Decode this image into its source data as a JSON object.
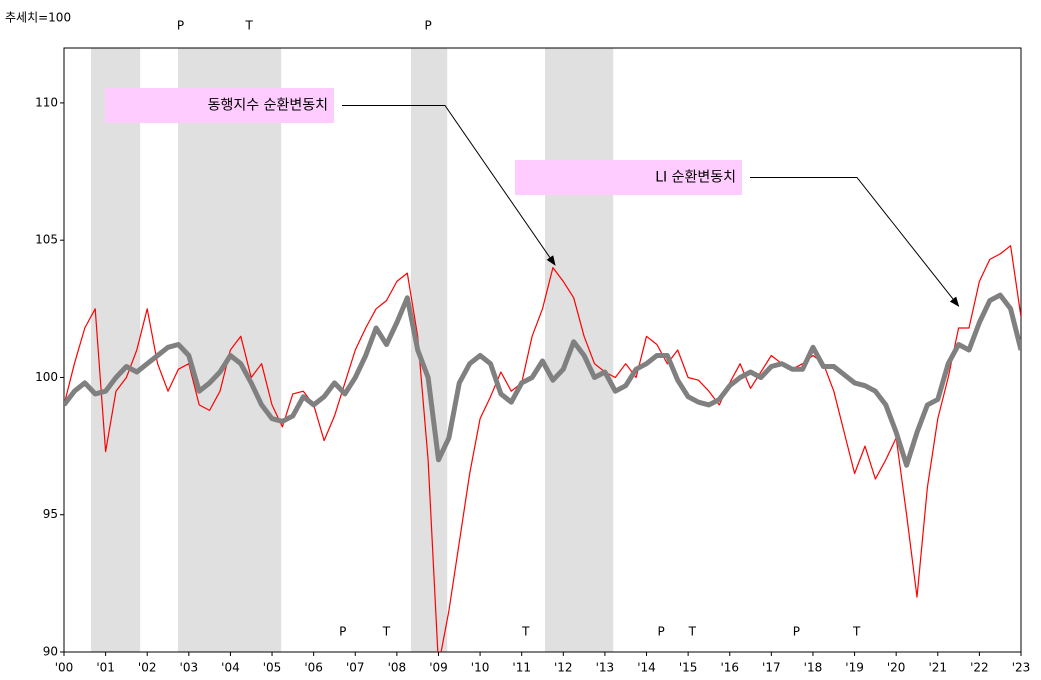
{
  "chart_data": {
    "type": "line",
    "y_unit_label": "추세치=100",
    "xlim": [
      2000,
      2023
    ],
    "ylim": [
      90,
      112
    ],
    "xticks": [
      {
        "value": 2000,
        "label": "'00"
      },
      {
        "value": 2001,
        "label": "'01"
      },
      {
        "value": 2002,
        "label": "'02"
      },
      {
        "value": 2003,
        "label": "'03"
      },
      {
        "value": 2004,
        "label": "'04"
      },
      {
        "value": 2005,
        "label": "'05"
      },
      {
        "value": 2006,
        "label": "'06"
      },
      {
        "value": 2007,
        "label": "'07"
      },
      {
        "value": 2008,
        "label": "'08"
      },
      {
        "value": 2009,
        "label": "'09"
      },
      {
        "value": 2010,
        "label": "'10"
      },
      {
        "value": 2011,
        "label": "'11"
      },
      {
        "value": 2012,
        "label": "'12"
      },
      {
        "value": 2013,
        "label": "'13"
      },
      {
        "value": 2014,
        "label": "'14"
      },
      {
        "value": 2015,
        "label": "'15"
      },
      {
        "value": 2016,
        "label": "'16"
      },
      {
        "value": 2017,
        "label": "'17"
      },
      {
        "value": 2018,
        "label": "'18"
      },
      {
        "value": 2019,
        "label": "'19"
      },
      {
        "value": 2020,
        "label": "'20"
      },
      {
        "value": 2021,
        "label": "'21"
      },
      {
        "value": 2022,
        "label": "'22"
      },
      {
        "value": 2023,
        "label": "'23"
      }
    ],
    "yticks": [
      90,
      95,
      100,
      105,
      110
    ],
    "x": [
      2000,
      2000.25,
      2000.5,
      2000.75,
      2001,
      2001.25,
      2001.5,
      2001.75,
      2002,
      2002.25,
      2002.5,
      2002.75,
      2003,
      2003.25,
      2003.5,
      2003.75,
      2004,
      2004.25,
      2004.5,
      2004.75,
      2005,
      2005.25,
      2005.5,
      2005.75,
      2006,
      2006.25,
      2006.5,
      2006.75,
      2007,
      2007.25,
      2007.5,
      2007.75,
      2008,
      2008.25,
      2008.5,
      2008.75,
      2009,
      2009.25,
      2009.5,
      2009.75,
      2010,
      2010.25,
      2010.5,
      2010.75,
      2011,
      2011.25,
      2011.5,
      2011.75,
      2012,
      2012.25,
      2012.5,
      2012.75,
      2013,
      2013.25,
      2013.5,
      2013.75,
      2014,
      2014.25,
      2014.5,
      2014.75,
      2015,
      2015.25,
      2015.5,
      2015.75,
      2016,
      2016.25,
      2016.5,
      2016.75,
      2017,
      2017.25,
      2017.5,
      2017.75,
      2018,
      2018.25,
      2018.5,
      2018.75,
      2019,
      2019.25,
      2019.5,
      2019.75,
      2020,
      2020.25,
      2020.5,
      2020.75,
      2021,
      2021.25,
      2021.5,
      2021.75,
      2022,
      2022.25,
      2022.5,
      2022.75,
      2023
    ],
    "series": [
      {
        "name": "동행지수 순환변동치",
        "color": "#ff0000",
        "width": 1.2,
        "values": [
          99.0,
          100.5,
          101.8,
          102.5,
          97.3,
          99.5,
          100.0,
          101.0,
          102.5,
          100.5,
          99.5,
          100.3,
          100.5,
          99.0,
          98.8,
          99.5,
          101.0,
          101.5,
          100.0,
          100.5,
          99.0,
          98.2,
          99.4,
          99.5,
          99.0,
          97.7,
          98.6,
          99.8,
          101.0,
          101.8,
          102.5,
          102.8,
          103.5,
          103.8,
          101.5,
          97.0,
          89.5,
          91.5,
          94.0,
          96.5,
          98.5,
          99.3,
          100.2,
          99.5,
          99.8,
          101.5,
          102.5,
          104.0,
          103.5,
          102.9,
          101.5,
          100.5,
          100.2,
          100.0,
          100.5,
          100.0,
          101.5,
          101.2,
          100.5,
          101.0,
          100.0,
          99.9,
          99.5,
          99.0,
          99.8,
          100.5,
          99.6,
          100.2,
          100.8,
          100.5,
          100.3,
          100.5,
          100.8,
          100.5,
          99.5,
          98.0,
          96.5,
          97.5,
          96.3,
          97.0,
          97.8,
          95.0,
          92.0,
          96.0,
          98.5,
          100.0,
          101.8,
          101.8,
          103.5,
          104.3,
          104.5,
          104.8,
          102.2
        ]
      },
      {
        "name": "LI 순환변동치",
        "color": "#808080",
        "width": 5,
        "values": [
          99.0,
          99.5,
          99.8,
          99.4,
          99.5,
          100.0,
          100.4,
          100.2,
          100.5,
          100.8,
          101.1,
          101.2,
          100.8,
          99.5,
          99.8,
          100.2,
          100.8,
          100.5,
          99.8,
          99.0,
          98.5,
          98.4,
          98.6,
          99.3,
          99.0,
          99.3,
          99.8,
          99.4,
          100.0,
          100.8,
          101.8,
          101.2,
          102.0,
          102.9,
          101.0,
          100.0,
          97.0,
          97.8,
          99.8,
          100.5,
          100.8,
          100.5,
          99.4,
          99.1,
          99.8,
          100.0,
          100.6,
          99.9,
          100.3,
          101.3,
          100.8,
          100.0,
          100.2,
          99.5,
          99.7,
          100.3,
          100.5,
          100.8,
          100.8,
          99.9,
          99.3,
          99.1,
          99.0,
          99.2,
          99.7,
          100.0,
          100.2,
          100.0,
          100.4,
          100.5,
          100.3,
          100.3,
          101.1,
          100.4,
          100.4,
          100.1,
          99.8,
          99.7,
          99.5,
          99.0,
          98.0,
          96.8,
          98.0,
          99.0,
          99.2,
          100.5,
          101.2,
          101.0,
          102.0,
          102.8,
          103.0,
          102.5,
          101.0
        ]
      }
    ],
    "shaded_periods": [
      [
        2000.65,
        2001.83
      ],
      [
        2002.74,
        2005.22
      ],
      [
        2008.34,
        2009.21
      ],
      [
        2011.56,
        2013.2
      ]
    ],
    "shade_color": "#e0e0e0",
    "turning_points": [
      {
        "label": "P",
        "x": 2002.8,
        "position": "top"
      },
      {
        "label": "T",
        "x": 2004.45,
        "position": "top"
      },
      {
        "label": "P",
        "x": 2008.75,
        "position": "top"
      },
      {
        "label": "P",
        "x": 2006.7,
        "position": "bottom"
      },
      {
        "label": "T",
        "x": 2007.75,
        "position": "bottom"
      },
      {
        "label": "T",
        "x": 2011.1,
        "position": "bottom"
      },
      {
        "label": "P",
        "x": 2014.35,
        "position": "bottom"
      },
      {
        "label": "T",
        "x": 2015.1,
        "position": "bottom"
      },
      {
        "label": "P",
        "x": 2017.6,
        "position": "bottom"
      },
      {
        "label": "T",
        "x": 2019.05,
        "position": "bottom"
      }
    ],
    "annotations": [
      {
        "series": 0,
        "x": 2011.8,
        "y": 104.1
      },
      {
        "series": 1,
        "x": 2021.5,
        "y": 102.6
      }
    ],
    "annotation_color": "#ffccff"
  }
}
